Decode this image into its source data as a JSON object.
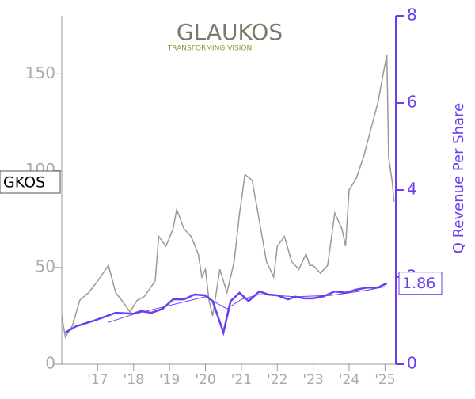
{
  "chart_data": {
    "type": "line",
    "logo": {
      "name": "GLAUKOS",
      "tagline": "TRANSFORMING VISION"
    },
    "y2_label": "Q Revenue Per Share",
    "xlim": [
      2016.0,
      2025.3
    ],
    "xticks": [
      {
        "value": 2017,
        "label": "'17"
      },
      {
        "value": 2018,
        "label": "'18"
      },
      {
        "value": 2019,
        "label": "'19"
      },
      {
        "value": 2020,
        "label": "'20"
      },
      {
        "value": 2021,
        "label": "'21"
      },
      {
        "value": 2022,
        "label": "'22"
      },
      {
        "value": 2023,
        "label": "'23"
      },
      {
        "value": 2024,
        "label": "'24"
      },
      {
        "value": 2025,
        "label": "'25"
      }
    ],
    "ylim": [
      0,
      180
    ],
    "yticks": [
      0,
      50,
      100,
      150
    ],
    "y2lim": [
      0,
      8
    ],
    "y2ticks": [
      0,
      2,
      4,
      6,
      8
    ],
    "series": [
      {
        "name": "GKOS",
        "color": "#999999",
        "axis": "y",
        "x": [
          2016.0,
          2016.1,
          2016.3,
          2016.5,
          2016.75,
          2017.0,
          2017.3,
          2017.5,
          2017.75,
          2017.9,
          2018.1,
          2018.3,
          2018.6,
          2018.7,
          2018.9,
          2019.1,
          2019.2,
          2019.4,
          2019.6,
          2019.8,
          2019.9,
          2020.0,
          2020.1,
          2020.2,
          2020.4,
          2020.6,
          2020.8,
          2020.95,
          2021.1,
          2021.3,
          2021.5,
          2021.7,
          2021.9,
          2022.0,
          2022.2,
          2022.4,
          2022.6,
          2022.8,
          2022.9,
          2023.0,
          2023.2,
          2023.4,
          2023.6,
          2023.8,
          2023.9,
          2024.0,
          2024.2,
          2024.4,
          2024.6,
          2024.8,
          2024.95,
          2025.05,
          2025.1,
          2025.2,
          2025.25
        ],
        "values": [
          25,
          14,
          20,
          33,
          37,
          43,
          51,
          37,
          31,
          27,
          33,
          35,
          43,
          66,
          61,
          70,
          80,
          70,
          66,
          57,
          45,
          49,
          33,
          25,
          49,
          37,
          53,
          78,
          98,
          95,
          74,
          53,
          45,
          61,
          66,
          53,
          49,
          57,
          51,
          51,
          47,
          51,
          78,
          70,
          61,
          90,
          96,
          107,
          121,
          135,
          150,
          160,
          107,
          94,
          84
        ]
      },
      {
        "color": "#6a3df0",
        "axis": "y2",
        "x": [
          2016.1,
          2016.4,
          2016.9,
          2017.2,
          2017.5,
          2018.0,
          2018.2,
          2018.5,
          2018.8,
          2019.1,
          2019.4,
          2019.7,
          2020.0,
          2020.2,
          2020.5,
          2020.7,
          2020.95,
          2021.2,
          2021.5,
          2021.75,
          2022.0,
          2022.3,
          2022.5,
          2022.75,
          2023.0,
          2023.3,
          2023.6,
          2023.9,
          2024.2,
          2024.5,
          2024.8,
          2025.05
        ],
        "values": [
          0.73,
          0.87,
          1.0,
          1.09,
          1.18,
          1.16,
          1.22,
          1.18,
          1.27,
          1.49,
          1.49,
          1.6,
          1.58,
          1.45,
          0.73,
          1.45,
          1.64,
          1.45,
          1.67,
          1.6,
          1.58,
          1.49,
          1.55,
          1.51,
          1.51,
          1.56,
          1.67,
          1.64,
          1.71,
          1.76,
          1.76,
          1.86
        ]
      },
      {
        "color": "#6a3df0",
        "axis": "y2",
        "x": [
          2017.3,
          2018.0,
          2019.0,
          2020.0,
          2020.6,
          2021.0,
          2021.5,
          2022.5,
          2023.5,
          2024.5,
          2025.0
        ],
        "values": [
          0.96,
          1.15,
          1.35,
          1.55,
          1.27,
          1.49,
          1.6,
          1.55,
          1.58,
          1.7,
          1.78
        ]
      }
    ]
  }
}
